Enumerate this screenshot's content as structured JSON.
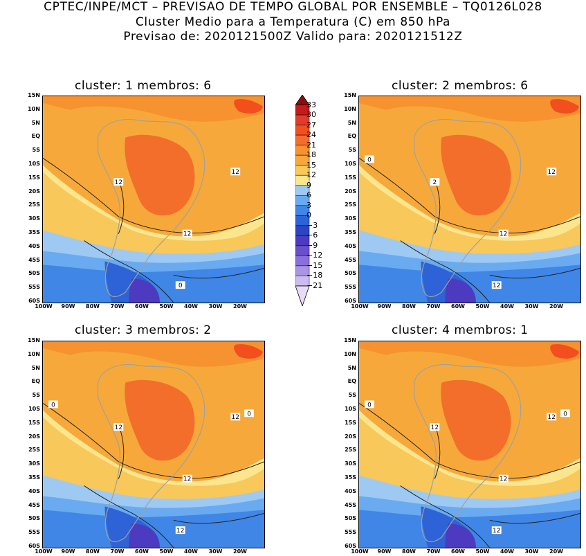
{
  "header": {
    "line1": "CPTEC/INPE/MCT – PREVISAO DE TEMPO GLOBAL POR ENSEMBLE – TQ0126L028",
    "line2": "Cluster Medio para a Temperatura (C) em 850 hPa",
    "line3": "Previsao de: 2020121500Z    Valido para: 2020121512Z"
  },
  "panels": [
    {
      "title": "cluster: 1   membros: 6",
      "labels": [
        "12",
        "12",
        "12",
        "0"
      ]
    },
    {
      "title": "cluster: 2   membros: 6",
      "labels": [
        "2",
        "12",
        "12",
        "12",
        "0"
      ]
    },
    {
      "title": "cluster: 3   membros: 2",
      "labels": [
        "12",
        "12",
        "12",
        "12",
        "0",
        "0"
      ]
    },
    {
      "title": "cluster: 4   membros: 1",
      "labels": [
        "12",
        "12",
        "12",
        "12",
        "0",
        "0"
      ]
    }
  ],
  "lat_ticks": [
    "15N",
    "10N",
    "5N",
    "EQ",
    "5S",
    "10S",
    "15S",
    "20S",
    "25S",
    "30S",
    "35S",
    "40S",
    "45S",
    "50S",
    "55S",
    "60S"
  ],
  "lon_ticks": [
    "100W",
    "90W",
    "80W",
    "70W",
    "60W",
    "50W",
    "40W",
    "30W",
    "20W"
  ],
  "colorbar": {
    "labels": [
      "33",
      "30",
      "27",
      "24",
      "21",
      "18",
      "15",
      "12",
      "9",
      "6",
      "3",
      "0",
      "−3",
      "−6",
      "−9",
      "−12",
      "−15",
      "−18",
      "−21"
    ],
    "colors": [
      "#8b0d0d",
      "#c41a1a",
      "#e23b2b",
      "#f24e1e",
      "#f36e2b",
      "#f6922f",
      "#f6a93a",
      "#f8c85a",
      "#fbe68e",
      "#9dc9f3",
      "#6aaaf0",
      "#3f86e6",
      "#2d63d6",
      "#2b45c4",
      "#4c3ac0",
      "#6a4fcc",
      "#8a70da",
      "#aa95e4",
      "#cbbcef",
      "#e6dcf8"
    ]
  }
}
